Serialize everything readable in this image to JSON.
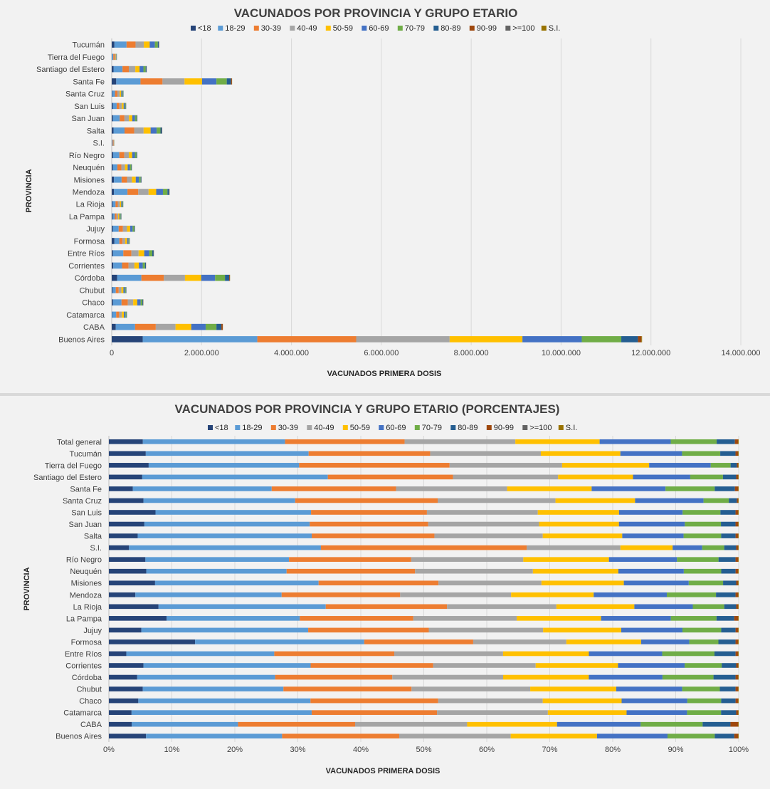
{
  "chart_data": [
    {
      "type": "bar",
      "orientation": "horizontal",
      "stacked": true,
      "title": "VACUNADOS POR PROVINCIA Y GRUPO ETARIO",
      "xlabel": "VACUNADOS PRIMERA  DOSIS",
      "ylabel": "PROVINCIA",
      "xlim": [
        0,
        14000000
      ],
      "xticks": [
        "0",
        "2.000.000",
        "4.000.000",
        "6.000.000",
        "8.000.000",
        "10.000.000",
        "12.000.000",
        "14.000.000"
      ],
      "grid": true,
      "legend": "top",
      "categories": [
        "Buenos Aires",
        "CABA",
        "Catamarca",
        "Chaco",
        "Chubut",
        "Córdoba",
        "Corrientes",
        "Entre Ríos",
        "Formosa",
        "Jujuy",
        "La Pampa",
        "La Rioja",
        "Mendoza",
        "Misiones",
        "Neuquén",
        "Río Negro",
        "S.I.",
        "Salta",
        "San Juan",
        "San Luis",
        "Santa Cruz",
        "Santa Fe",
        "Santiago del Estero",
        "Tierra del Fuego",
        "Tucumán"
      ],
      "series": [
        {
          "name": "<18",
          "values": [
            690000,
            90000,
            10000,
            28000,
            20000,
            120000,
            35000,
            28000,
            60000,
            25000,
            20000,
            20000,
            50000,
            50000,
            25000,
            30000,
            3000,
            40000,
            28000,
            25000,
            12000,
            100000,
            40000,
            5000,
            60000
          ]
        },
        {
          "name": "18-29",
          "values": [
            2550000,
            430000,
            90000,
            190000,
            70000,
            540000,
            195000,
            230000,
            110000,
            130000,
            48000,
            65000,
            300000,
            170000,
            100000,
            140000,
            18000,
            245000,
            150000,
            85000,
            60000,
            540000,
            200000,
            30000,
            270000
          ]
        },
        {
          "name": "30-39",
          "values": [
            2200000,
            460000,
            65000,
            140000,
            65000,
            500000,
            145000,
            180000,
            70000,
            95000,
            40000,
            50000,
            240000,
            120000,
            90000,
            110000,
            18000,
            215000,
            105000,
            60000,
            55000,
            490000,
            140000,
            30000,
            200000
          ]
        },
        {
          "name": "40-49",
          "values": [
            2080000,
            440000,
            60000,
            120000,
            60000,
            470000,
            130000,
            160000,
            60000,
            90000,
            36000,
            45000,
            230000,
            110000,
            80000,
            100000,
            8000,
            210000,
            100000,
            55000,
            50000,
            490000,
            145000,
            22000,
            185000
          ]
        },
        {
          "name": "50-59",
          "values": [
            1620000,
            350000,
            45000,
            90000,
            45000,
            360000,
            100000,
            125000,
            45000,
            70000,
            28000,
            32000,
            170000,
            85000,
            60000,
            75000,
            4500,
            155000,
            75000,
            40000,
            35000,
            390000,
            95000,
            13000,
            130000
          ]
        },
        {
          "name": "60-69",
          "values": [
            1320000,
            320000,
            35000,
            75000,
            35000,
            310000,
            85000,
            110000,
            30000,
            55000,
            23000,
            25000,
            150000,
            70000,
            50000,
            60000,
            2500,
            135000,
            60000,
            30000,
            30000,
            320000,
            85000,
            10000,
            115000
          ]
        },
        {
          "name": "70-79",
          "values": [
            880000,
            240000,
            22000,
            40000,
            20000,
            220000,
            50000,
            70000,
            18000,
            35000,
            14000,
            14000,
            100000,
            40000,
            30000,
            35000,
            2000,
            85000,
            35000,
            18000,
            15000,
            230000,
            50000,
            4000,
            65000
          ]
        },
        {
          "name": "80-89",
          "values": [
            370000,
            110000,
            10000,
            18000,
            9000,
            95000,
            20000,
            30000,
            7000,
            14000,
            6000,
            5000,
            40000,
            15000,
            12000,
            15000,
            1100,
            32000,
            15000,
            7000,
            5000,
            95000,
            20000,
            1000,
            26000
          ]
        },
        {
          "name": "90-99",
          "values": [
            75000,
            30000,
            1000,
            3000,
            1500,
            15000,
            3000,
            4000,
            1000,
            2000,
            1500,
            800,
            6000,
            2000,
            2000,
            2500,
            200,
            6000,
            2500,
            1000,
            800,
            20000,
            3000,
            200,
            4000
          ]
        },
        {
          "name": ">=100",
          "values": [
            2000,
            500,
            100,
            200,
            100,
            400,
            100,
            200,
            100,
            100,
            100,
            50,
            200,
            100,
            100,
            100,
            20,
            200,
            100,
            50,
            50,
            500,
            100,
            10,
            100
          ]
        },
        {
          "name": "S.I.",
          "values": [
            15000,
            3000,
            500,
            1000,
            500,
            3000,
            700,
            1000,
            300,
            500,
            300,
            300,
            1500,
            700,
            500,
            500,
            100,
            1000,
            500,
            300,
            200,
            3000,
            700,
            100,
            1000
          ]
        }
      ]
    },
    {
      "type": "bar",
      "orientation": "horizontal",
      "stacked": true,
      "normalized": true,
      "title": "VACUNADOS POR PROVINCIA Y GRUPO ETARIO (PORCENTAJES)",
      "xlabel": "VACUNADOS PRIMERA  DOSIS",
      "ylabel": "PROVINCIA",
      "xlim": [
        0,
        100
      ],
      "xticks": [
        "0%",
        "10%",
        "20%",
        "30%",
        "40%",
        "50%",
        "60%",
        "70%",
        "80%",
        "90%",
        "100%"
      ],
      "grid": true,
      "legend": "top",
      "categories": [
        "Buenos Aires",
        "CABA",
        "Catamarca",
        "Chaco",
        "Chubut",
        "Córdoba",
        "Corrientes",
        "Entre Ríos",
        "Formosa",
        "Jujuy",
        "La Pampa",
        "La Rioja",
        "Mendoza",
        "Misiones",
        "Neuquén",
        "Río Negro",
        "S.I.",
        "Salta",
        "San Juan",
        "San Luis",
        "Santa Cruz",
        "Santa Fe",
        "Santiago del Estero",
        "Tierra del Fuego",
        "Tucumán",
        "Total general"
      ],
      "series": [
        {
          "name": "<18",
          "values": [
            5.9,
            3.6,
            3.6,
            4.7,
            5.4,
            4.5,
            5.5,
            2.8,
            13.6,
            5.2,
            9.1,
            7.9,
            4.2,
            7.4,
            6.0,
            5.8,
            3.2,
            4.6,
            5.6,
            7.4,
            5.6,
            3.8,
            5.3,
            6.4,
            5.8,
            5.4
          ]
        },
        {
          "name": "18-29",
          "values": [
            21.6,
            16.8,
            28.6,
            27.5,
            22.4,
            21.9,
            26.6,
            23.8,
            26.7,
            26.7,
            21.0,
            26.6,
            23.2,
            26.2,
            22.5,
            22.8,
            30.5,
            27.8,
            26.1,
            24.7,
            24.6,
            22.0,
            29.5,
            24.2,
            25.6,
            22.6
          ]
        },
        {
          "name": "30-39",
          "values": [
            18.6,
            18.5,
            19.9,
            20.4,
            20.4,
            18.6,
            19.5,
            19.3,
            17.2,
            19.3,
            17.9,
            19.3,
            18.8,
            19.2,
            20.6,
            19.4,
            32.7,
            19.6,
            18.7,
            18.4,
            23.1,
            19.7,
            19.9,
            24.2,
            19.1,
            19.0
          ]
        },
        {
          "name": "40-49",
          "values": [
            17.7,
            17.7,
            17.6,
            16.7,
            18.9,
            17.6,
            16.3,
            17.5,
            14.7,
            18.3,
            16.3,
            17.4,
            17.6,
            16.5,
            18.9,
            17.8,
            14.9,
            17.3,
            17.5,
            17.6,
            19.1,
            17.6,
            16.7,
            18.1,
            17.4,
            17.6
          ]
        },
        {
          "name": "50-59",
          "values": [
            13.7,
            14.2,
            12.5,
            12.6,
            13.7,
            13.6,
            13.1,
            13.8,
            11.8,
            12.5,
            13.3,
            12.4,
            13.1,
            13.2,
            13.7,
            13.6,
            8.3,
            12.7,
            12.6,
            12.9,
            12.9,
            13.4,
            11.9,
            14.0,
            12.5,
            13.4
          ]
        },
        {
          "name": "60-69",
          "values": [
            11.2,
            13.2,
            9.6,
            10.5,
            10.5,
            11.7,
            10.6,
            11.8,
            7.6,
            9.8,
            11.0,
            9.3,
            11.6,
            10.4,
            10.5,
            10.8,
            4.7,
            9.8,
            10.4,
            10.1,
            11.1,
            11.7,
            9.1,
            9.9,
            9.7,
            11.3
          ]
        },
        {
          "name": "70-79",
          "values": [
            7.5,
            9.8,
            5.4,
            5.4,
            6.0,
            8.1,
            5.9,
            8.4,
            4.6,
            6.2,
            7.2,
            5.0,
            7.8,
            5.5,
            6.0,
            6.6,
            3.5,
            6.0,
            5.7,
            6.0,
            4.1,
            7.8,
            5.2,
            3.2,
            6.0,
            7.3
          ]
        },
        {
          "name": "80-89",
          "values": [
            3.1,
            4.4,
            2.4,
            2.3,
            2.5,
            3.5,
            2.3,
            3.4,
            2.7,
            2.3,
            2.8,
            1.9,
            3.1,
            2.1,
            2.3,
            2.7,
            1.9,
            2.3,
            2.3,
            2.4,
            1.3,
            3.2,
            2.1,
            1.0,
            2.4,
            2.9
          ]
        },
        {
          "name": "90-99",
          "values": [
            0.6,
            1.2,
            0.3,
            0.4,
            0.4,
            0.4,
            0.3,
            0.4,
            0.4,
            0.4,
            0.6,
            0.3,
            0.4,
            0.3,
            0.4,
            0.4,
            0.3,
            0.4,
            0.4,
            0.4,
            0.2,
            0.5,
            0.3,
            0.2,
            0.4,
            0.5
          ]
        },
        {
          "name": ">=100",
          "values": [
            0.0,
            0.0,
            0.0,
            0.0,
            0.0,
            0.0,
            0.0,
            0.0,
            0.0,
            0.0,
            0.0,
            0.0,
            0.0,
            0.0,
            0.0,
            0.0,
            0.0,
            0.0,
            0.0,
            0.0,
            0.0,
            0.0,
            0.0,
            0.0,
            0.0,
            0.0
          ]
        },
        {
          "name": "S.I.",
          "values": [
            0.1,
            0.1,
            0.1,
            0.1,
            0.1,
            0.1,
            0.1,
            0.1,
            0.1,
            0.1,
            0.1,
            0.1,
            0.1,
            0.1,
            0.1,
            0.1,
            0.1,
            0.1,
            0.1,
            0.1,
            0.1,
            0.1,
            0.1,
            0.1,
            0.1,
            0.1
          ]
        }
      ]
    }
  ],
  "colors": {
    "series": [
      "#264478",
      "#5b9bd5",
      "#ed7d31",
      "#a5a5a5",
      "#ffc000",
      "#4472c4",
      "#70ad47",
      "#255e91",
      "#9e480e",
      "#636363",
      "#997300"
    ],
    "panel_background": "#f2f2f2",
    "plot_background": "#f2f2f2",
    "grid": "#d9d9d9",
    "frame": "#d9d9d9"
  }
}
